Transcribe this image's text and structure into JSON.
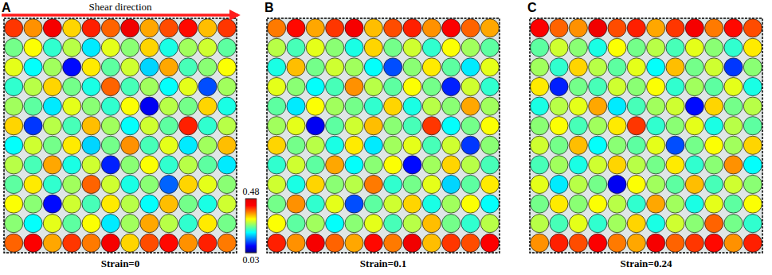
{
  "chart_data": {
    "type": "particle_map",
    "annotation": "Shear direction",
    "colorbar": {
      "range": [
        0.03,
        0.48
      ],
      "ticks": [
        0.03,
        0.48
      ]
    },
    "panels": [
      {
        "label": "A",
        "caption": "Strain=0",
        "cells": [
          [
            0.4,
            0.36,
            0.44,
            0.33,
            0.41,
            0.38,
            0.45,
            0.35,
            0.39,
            0.42,
            0.34,
            0.4
          ],
          [
            0.25,
            0.31,
            0.22,
            0.28,
            0.19,
            0.3,
            0.26,
            0.33,
            0.21,
            0.27,
            0.29,
            0.24
          ],
          [
            0.3,
            0.2,
            0.27,
            0.09,
            0.32,
            0.24,
            0.29,
            0.18,
            0.35,
            0.23,
            0.26,
            0.31
          ],
          [
            0.22,
            0.28,
            0.33,
            0.25,
            0.21,
            0.38,
            0.23,
            0.27,
            0.2,
            0.3,
            0.12,
            0.27
          ],
          [
            0.27,
            0.24,
            0.19,
            0.3,
            0.26,
            0.22,
            0.31,
            0.08,
            0.28,
            0.25,
            0.33,
            0.21
          ],
          [
            0.33,
            0.11,
            0.28,
            0.23,
            0.34,
            0.27,
            0.2,
            0.29,
            0.24,
            0.41,
            0.22,
            0.28
          ],
          [
            0.2,
            0.29,
            0.25,
            0.32,
            0.18,
            0.25,
            0.36,
            0.23,
            0.3,
            0.19,
            0.27,
            0.34
          ],
          [
            0.28,
            0.23,
            0.35,
            0.21,
            0.29,
            0.1,
            0.26,
            0.31,
            0.22,
            0.28,
            0.24,
            0.19
          ],
          [
            0.24,
            0.32,
            0.22,
            0.27,
            0.38,
            0.29,
            0.21,
            0.26,
            0.13,
            0.33,
            0.3,
            0.26
          ],
          [
            0.31,
            0.26,
            0.09,
            0.29,
            0.23,
            0.32,
            0.28,
            0.2,
            0.34,
            0.25,
            0.21,
            0.29
          ],
          [
            0.26,
            0.2,
            0.3,
            0.24,
            0.31,
            0.19,
            0.27,
            0.35,
            0.28,
            0.22,
            0.32,
            0.25
          ],
          [
            0.38,
            0.43,
            0.35,
            0.4,
            0.37,
            0.44,
            0.33,
            0.39,
            0.42,
            0.36,
            0.41,
            0.37
          ]
        ]
      },
      {
        "label": "B",
        "caption": "Strain=0.1",
        "cells": [
          [
            0.37,
            0.42,
            0.35,
            0.4,
            0.44,
            0.34,
            0.39,
            0.41,
            0.36,
            0.43,
            0.38,
            0.35
          ],
          [
            0.28,
            0.23,
            0.3,
            0.26,
            0.21,
            0.33,
            0.25,
            0.29,
            0.22,
            0.31,
            0.27,
            0.24
          ],
          [
            0.21,
            0.34,
            0.25,
            0.29,
            0.27,
            0.2,
            0.12,
            0.26,
            0.32,
            0.24,
            0.19,
            0.3
          ],
          [
            0.3,
            0.26,
            0.2,
            0.23,
            0.36,
            0.28,
            0.24,
            0.31,
            0.25,
            0.1,
            0.29,
            0.22
          ],
          [
            0.24,
            0.19,
            0.31,
            0.27,
            0.25,
            0.22,
            0.33,
            0.21,
            0.28,
            0.26,
            0.35,
            0.27
          ],
          [
            0.27,
            0.3,
            0.08,
            0.24,
            0.29,
            0.34,
            0.26,
            0.23,
            0.4,
            0.2,
            0.25,
            0.31
          ],
          [
            0.33,
            0.25,
            0.28,
            0.21,
            0.32,
            0.19,
            0.27,
            0.3,
            0.23,
            0.29,
            0.11,
            0.26
          ],
          [
            0.22,
            0.29,
            0.24,
            0.35,
            0.2,
            0.26,
            0.31,
            0.09,
            0.27,
            0.33,
            0.28,
            0.23
          ],
          [
            0.29,
            0.21,
            0.33,
            0.26,
            0.28,
            0.37,
            0.22,
            0.25,
            0.3,
            0.18,
            0.24,
            0.32
          ],
          [
            0.25,
            0.36,
            0.22,
            0.3,
            0.12,
            0.24,
            0.29,
            0.33,
            0.21,
            0.27,
            0.31,
            0.2
          ],
          [
            0.31,
            0.24,
            0.27,
            0.2,
            0.26,
            0.3,
            0.23,
            0.28,
            0.34,
            0.25,
            0.22,
            0.28
          ],
          [
            0.41,
            0.36,
            0.44,
            0.38,
            0.35,
            0.42,
            0.37,
            0.45,
            0.34,
            0.4,
            0.39,
            0.43
          ]
        ]
      },
      {
        "label": "C",
        "caption": "Strain=0.24",
        "cells": [
          [
            0.43,
            0.38,
            0.36,
            0.45,
            0.39,
            0.41,
            0.35,
            0.4,
            0.44,
            0.37,
            0.42,
            0.39
          ],
          [
            0.24,
            0.29,
            0.26,
            0.21,
            0.31,
            0.25,
            0.28,
            0.23,
            0.3,
            0.26,
            0.22,
            0.32
          ],
          [
            0.27,
            0.22,
            0.33,
            0.28,
            0.24,
            0.3,
            0.2,
            0.34,
            0.25,
            0.29,
            0.11,
            0.26
          ],
          [
            0.32,
            0.1,
            0.25,
            0.23,
            0.29,
            0.26,
            0.31,
            0.22,
            0.27,
            0.24,
            0.3,
            0.21
          ],
          [
            0.21,
            0.28,
            0.3,
            0.35,
            0.19,
            0.23,
            0.27,
            0.29,
            0.09,
            0.33,
            0.25,
            0.28
          ],
          [
            0.26,
            0.31,
            0.23,
            0.27,
            0.32,
            0.4,
            0.22,
            0.26,
            0.3,
            0.21,
            0.28,
            0.24
          ],
          [
            0.29,
            0.25,
            0.34,
            0.2,
            0.26,
            0.24,
            0.3,
            0.12,
            0.25,
            0.31,
            0.27,
            0.33
          ],
          [
            0.23,
            0.27,
            0.21,
            0.29,
            0.33,
            0.28,
            0.25,
            0.32,
            0.22,
            0.26,
            0.36,
            0.2
          ],
          [
            0.3,
            0.19,
            0.28,
            0.25,
            0.08,
            0.31,
            0.27,
            0.24,
            0.34,
            0.23,
            0.29,
            0.26
          ],
          [
            0.25,
            0.32,
            0.26,
            0.31,
            0.28,
            0.22,
            0.35,
            0.27,
            0.21,
            0.3,
            0.24,
            0.31
          ],
          [
            0.28,
            0.23,
            0.3,
            0.22,
            0.27,
            0.33,
            0.21,
            0.29,
            0.26,
            0.38,
            0.25,
            0.22
          ],
          [
            0.36,
            0.41,
            0.39,
            0.43,
            0.37,
            0.35,
            0.44,
            0.38,
            0.4,
            0.42,
            0.36,
            0.41
          ]
        ]
      }
    ]
  }
}
